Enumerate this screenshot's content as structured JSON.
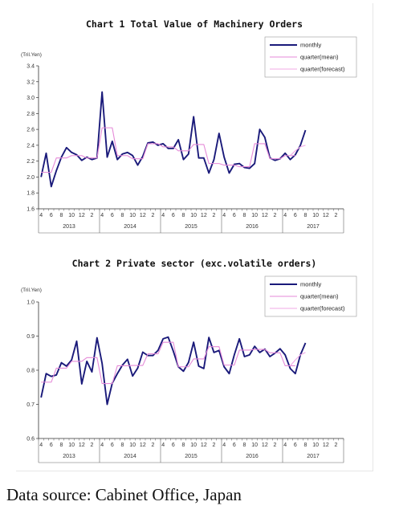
{
  "chart_data": [
    {
      "type": "line",
      "title": "Chart 1 Total Value of Machinery Orders",
      "unit_label": "(Tril.Yen)",
      "ylim": [
        1.6,
        3.4
      ],
      "yticks": [
        "1.6",
        "1.8",
        "2.0",
        "2.2",
        "2.4",
        "2.6",
        "2.8",
        "3.0",
        "3.2",
        "3.4"
      ],
      "xtick_labels": [
        "4",
        "6",
        "8",
        "10",
        "12",
        "2",
        "4",
        "6",
        "8",
        "10",
        "12",
        "2",
        "4",
        "6",
        "8",
        "10",
        "12",
        "2",
        "4",
        "6",
        "8",
        "10",
        "12",
        "2",
        "4",
        "6",
        "8",
        "10",
        "12",
        "2"
      ],
      "year_labels": [
        "2013",
        "2014",
        "2015",
        "2016",
        "2017"
      ],
      "legend": [
        "monthly",
        "quarter(mean)",
        "quarter(forecast)"
      ],
      "series": [
        {
          "name": "monthly",
          "color": "#1a1a7a",
          "values": [
            2.0,
            2.3,
            1.88,
            2.08,
            2.25,
            2.37,
            2.31,
            2.28,
            2.21,
            2.25,
            2.22,
            2.24,
            3.07,
            2.25,
            2.45,
            2.22,
            2.29,
            2.31,
            2.27,
            2.15,
            2.26,
            2.43,
            2.44,
            2.4,
            2.42,
            2.36,
            2.36,
            2.47,
            2.22,
            2.29,
            2.76,
            2.24,
            2.24,
            2.05,
            2.22,
            2.55,
            2.25,
            2.05,
            2.16,
            2.17,
            2.12,
            2.11,
            2.17,
            2.6,
            2.5,
            2.24,
            2.21,
            2.23,
            2.3,
            2.22,
            2.28,
            2.4,
            2.59
          ]
        },
        {
          "name": "quarter(mean)",
          "color": "#e58ad8",
          "values": [
            2.06,
            2.06,
            2.06,
            2.24,
            2.24,
            2.24,
            2.27,
            2.27,
            2.27,
            2.24,
            2.24,
            2.24,
            2.62,
            2.62,
            2.62,
            2.27,
            2.27,
            2.27,
            2.23,
            2.23,
            2.23,
            2.42,
            2.42,
            2.42,
            2.38,
            2.38,
            2.38,
            2.33,
            2.33,
            2.33,
            2.41,
            2.41,
            2.41,
            2.17,
            2.17,
            2.17,
            2.15,
            2.15,
            2.15,
            2.13,
            2.13,
            2.13,
            2.42,
            2.42,
            2.42,
            2.23,
            2.23,
            2.23,
            2.27,
            2.27,
            2.27,
            null,
            null
          ]
        },
        {
          "name": "quarter(forecast)",
          "color": "#f0a8e6",
          "values": [
            null,
            null,
            null,
            null,
            null,
            null,
            null,
            null,
            null,
            null,
            null,
            null,
            null,
            null,
            null,
            null,
            null,
            null,
            null,
            null,
            null,
            null,
            null,
            null,
            null,
            null,
            null,
            null,
            null,
            null,
            null,
            null,
            null,
            null,
            null,
            null,
            null,
            null,
            null,
            null,
            null,
            null,
            null,
            null,
            null,
            null,
            null,
            null,
            null,
            2.27,
            2.33,
            2.38,
            2.4
          ]
        }
      ]
    },
    {
      "type": "line",
      "title": "Chart 2 Private sector (exc.volatile orders)",
      "unit_label": "(Tril.Yen)",
      "ylim": [
        0.6,
        1.0
      ],
      "yticks": [
        "0.6",
        "0.7",
        "0.8",
        "0.9",
        "1.0"
      ],
      "xtick_labels": [
        "4",
        "6",
        "8",
        "10",
        "12",
        "2",
        "4",
        "6",
        "8",
        "10",
        "12",
        "2",
        "4",
        "6",
        "8",
        "10",
        "12",
        "2",
        "4",
        "6",
        "8",
        "10",
        "12",
        "2",
        "4",
        "6",
        "8",
        "10",
        "12",
        "2"
      ],
      "year_labels": [
        "2013",
        "2014",
        "2015",
        "2016",
        "2017"
      ],
      "legend": [
        "monthly",
        "quarter(mean)",
        "quarter(forecast)"
      ],
      "series": [
        {
          "name": "monthly",
          "color": "#1a1a7a",
          "values": [
            0.72,
            0.79,
            0.782,
            0.786,
            0.822,
            0.812,
            0.83,
            0.885,
            0.76,
            0.826,
            0.795,
            0.895,
            0.82,
            0.7,
            0.762,
            0.79,
            0.815,
            0.832,
            0.783,
            0.806,
            0.853,
            0.843,
            0.843,
            0.858,
            0.892,
            0.897,
            0.856,
            0.81,
            0.797,
            0.823,
            0.882,
            0.812,
            0.805,
            0.896,
            0.852,
            0.858,
            0.81,
            0.79,
            0.845,
            0.892,
            0.84,
            0.845,
            0.87,
            0.852,
            0.862,
            0.84,
            0.85,
            0.863,
            0.845,
            0.805,
            0.79,
            0.845,
            0.88
          ]
        },
        {
          "name": "quarter(mean)",
          "color": "#e58ad8",
          "values": [
            0.765,
            0.765,
            0.765,
            0.806,
            0.806,
            0.806,
            0.826,
            0.826,
            0.826,
            0.837,
            0.837,
            0.837,
            0.761,
            0.761,
            0.761,
            0.813,
            0.813,
            0.813,
            0.814,
            0.814,
            0.814,
            0.848,
            0.848,
            0.848,
            0.882,
            0.882,
            0.882,
            0.81,
            0.81,
            0.81,
            0.833,
            0.833,
            0.833,
            0.869,
            0.869,
            0.869,
            0.815,
            0.815,
            0.815,
            0.859,
            0.859,
            0.859,
            0.861,
            0.861,
            0.861,
            0.851,
            0.851,
            0.851,
            0.813,
            0.813,
            0.813,
            null,
            null
          ]
        },
        {
          "name": "quarter(forecast)",
          "color": "#f0a8e6",
          "values": [
            null,
            null,
            null,
            null,
            null,
            null,
            null,
            null,
            null,
            null,
            null,
            null,
            null,
            null,
            null,
            null,
            null,
            null,
            null,
            null,
            null,
            null,
            null,
            null,
            null,
            null,
            null,
            null,
            null,
            null,
            null,
            null,
            null,
            null,
            null,
            null,
            null,
            null,
            null,
            null,
            null,
            null,
            null,
            null,
            null,
            null,
            null,
            null,
            null,
            0.813,
            0.83,
            0.845,
            0.852
          ]
        }
      ]
    }
  ],
  "footer": {
    "source": "Data source: Cabinet Office, Japan"
  }
}
